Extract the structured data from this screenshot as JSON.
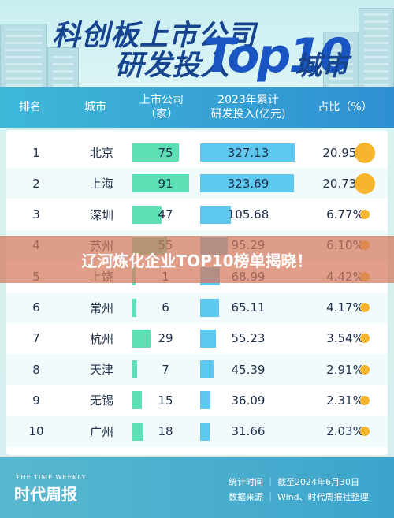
{
  "header": {
    "title_line1": "科创板上市公司",
    "title_line2": "研发投入",
    "title_top": "Top10",
    "title_suffix": "城市"
  },
  "columns": {
    "rank": "排名",
    "city": "城市",
    "listed": "上市公司\n（家）",
    "rd": "2023年累计\n研发投入(亿元)",
    "share": "占比（%）"
  },
  "banner": {
    "text": "辽河炼化企业TOP10榜单揭晓！"
  },
  "footer": {
    "brand_en": "THE TIME WEEKLY",
    "brand_cn": "时代周报",
    "stat_time": "统计时间 ｜ 截至2024年6月30日",
    "source": "数据来源 ｜ Wind、时代周报社整理"
  },
  "colors": {
    "listed_bar": "#5ee0b7",
    "rd_bar": "#5ec8ef",
    "dot": "#f6b52c",
    "title": "#17448e"
  },
  "chart_data": {
    "type": "table",
    "rows": [
      {
        "rank": "1",
        "city": "北京",
        "listed": 75,
        "rd": 327.13,
        "rd_label": "327.13",
        "share": "20.95%",
        "share_value": 20.95
      },
      {
        "rank": "2",
        "city": "上海",
        "listed": 91,
        "rd": 323.69,
        "rd_label": "323.69",
        "share": "20.73%",
        "share_value": 20.73
      },
      {
        "rank": "3",
        "city": "深圳",
        "listed": 47,
        "rd": 105.68,
        "rd_label": "105.68",
        "share": "6.77%",
        "share_value": 6.77
      },
      {
        "rank": "4",
        "city": "苏州",
        "listed": 55,
        "rd": 95.29,
        "rd_label": "95.29",
        "share": "6.10%",
        "share_value": 6.1
      },
      {
        "rank": "5",
        "city": "上饶",
        "listed": 1,
        "rd": 68.99,
        "rd_label": "68.99",
        "share": "4.42%",
        "share_value": 4.42
      },
      {
        "rank": "6",
        "city": "常州",
        "listed": 6,
        "rd": 65.11,
        "rd_label": "65.11",
        "share": "4.17%",
        "share_value": 4.17
      },
      {
        "rank": "7",
        "city": "杭州",
        "listed": 29,
        "rd": 55.23,
        "rd_label": "55.23",
        "share": "3.54%",
        "share_value": 3.54
      },
      {
        "rank": "8",
        "city": "天津",
        "listed": 7,
        "rd": 45.39,
        "rd_label": "45.39",
        "share": "2.91%",
        "share_value": 2.91
      },
      {
        "rank": "9",
        "city": "无锡",
        "listed": 15,
        "rd": 36.09,
        "rd_label": "36.09",
        "share": "2.31%",
        "share_value": 2.31
      },
      {
        "rank": "10",
        "city": "广州",
        "listed": 18,
        "rd": 31.66,
        "rd_label": "31.66",
        "share": "2.03%",
        "share_value": 2.03
      }
    ],
    "listed_max": 91,
    "rd_max": 327.13
  }
}
